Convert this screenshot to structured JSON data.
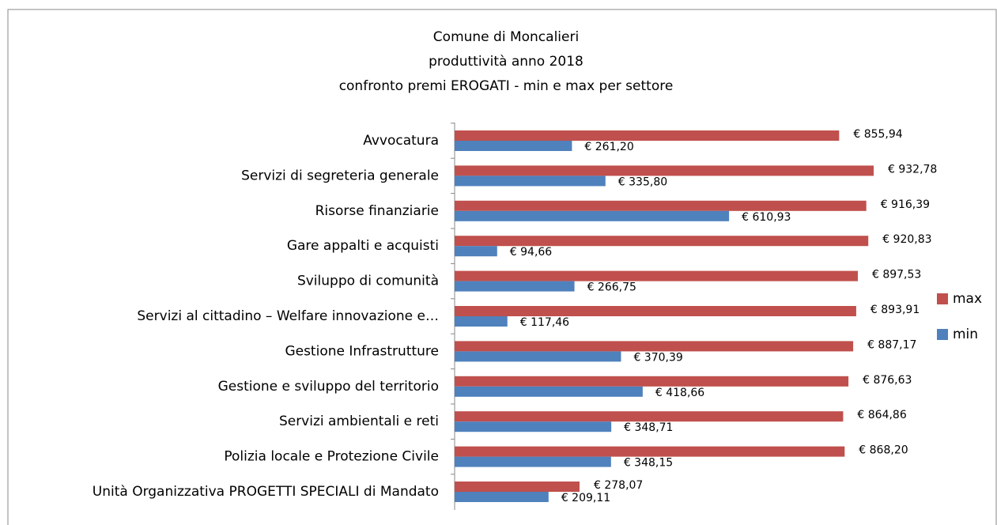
{
  "chart_data": {
    "type": "bar",
    "orientation": "horizontal",
    "title": [
      "Comune di Moncalieri",
      "produttività anno 2018",
      "confronto premi  EROGATI -  min e max per settore"
    ],
    "categories": [
      "Avvocatura",
      "Servizi di segreteria generale",
      "Risorse finanziarie",
      "Gare appalti e acquisti",
      "Sviluppo di comunità",
      "Servizi al cittadino – Welfare innovazione e…",
      "Gestione Infrastrutture",
      "Gestione e sviluppo del territorio",
      "Servizi ambientali e reti",
      "Polizia locale e Protezione Civile",
      "Unità Organizzativa PROGETTI SPECIALI di Mandato"
    ],
    "series": [
      {
        "name": "max",
        "color": "#c0504d",
        "values": [
          855.94,
          932.78,
          916.39,
          920.83,
          897.53,
          893.91,
          887.17,
          876.63,
          864.86,
          868.2,
          278.07
        ],
        "value_labels": [
          "€ 855,94",
          "€ 932,78",
          "€ 916,39",
          "€ 920,83",
          "€ 897,53",
          "€ 893,91",
          "€ 887,17",
          "€ 876,63",
          "€ 864,86",
          "€ 868,20",
          "€ 278,07"
        ]
      },
      {
        "name": "min",
        "color": "#4f81bd",
        "values": [
          261.2,
          335.8,
          610.93,
          94.66,
          266.75,
          117.46,
          370.39,
          418.66,
          348.71,
          348.15,
          209.11
        ],
        "value_labels": [
          "€ 261,20",
          "€ 335,80",
          "€ 610,93",
          "€ 94,66",
          "€ 266,75",
          "€ 117,46",
          "€ 370,39",
          "€ 418,66",
          "€ 348,71",
          "€ 348,15",
          "€ 209,11"
        ]
      }
    ],
    "legend": "right"
  }
}
